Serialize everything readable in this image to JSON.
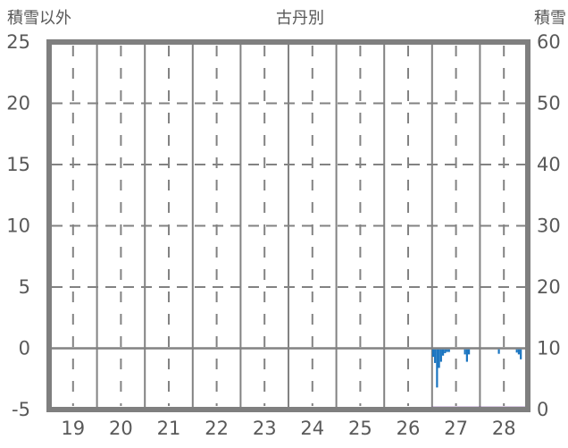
{
  "chart_data": {
    "type": "bar",
    "title": "古丹別",
    "left_axis": {
      "label": "積雪以外",
      "range": [
        -5,
        25
      ],
      "ticks": [
        25,
        20,
        15,
        10,
        5,
        0,
        -5
      ],
      "dashed_gridlines": [
        20,
        15,
        10,
        5
      ],
      "solid_gridline": 0
    },
    "right_axis": {
      "label": "積雪",
      "range": [
        0,
        60
      ],
      "ticks": [
        60,
        50,
        40,
        30,
        20,
        10,
        0
      ]
    },
    "x_axis": {
      "range": [
        18.5,
        28.5
      ],
      "ticks": [
        19,
        20,
        21,
        22,
        23,
        24,
        25,
        26,
        27,
        28
      ],
      "solid_gridlines": [
        19.5,
        20.5,
        21.5,
        22.5,
        23.5,
        24.5,
        25.5,
        26.5,
        27.5
      ]
    },
    "colors": {
      "bars": "#1b75c0",
      "snow_line": "#6d2d91",
      "grid": "#828282",
      "border": "#7f7f7f",
      "text": "#595959"
    },
    "series": [
      {
        "name": "積雪以外",
        "type": "bar",
        "axis": "left",
        "color": "#1b75c0",
        "points": [
          {
            "day": 26,
            "hour": 12,
            "value": -0.7
          },
          {
            "day": 26,
            "hour": 13,
            "value": -1.2
          },
          {
            "day": 26,
            "hour": 14,
            "value": -3.2
          },
          {
            "day": 26,
            "hour": 15,
            "value": -1.6
          },
          {
            "day": 26,
            "hour": 16,
            "value": -1.1
          },
          {
            "day": 26,
            "hour": 17,
            "value": -0.6
          },
          {
            "day": 26,
            "hour": 18,
            "value": -0.4
          },
          {
            "day": 26,
            "hour": 19,
            "value": -0.3
          },
          {
            "day": 26,
            "hour": 20,
            "value": -0.3
          },
          {
            "day": 27,
            "hour": 4,
            "value": -0.5
          },
          {
            "day": 27,
            "hour": 5,
            "value": -1.1
          },
          {
            "day": 27,
            "hour": 6,
            "value": -0.5
          },
          {
            "day": 27,
            "hour": 21,
            "value": -0.45
          },
          {
            "day": 28,
            "hour": 6,
            "value": -0.35
          },
          {
            "day": 28,
            "hour": 7,
            "value": -0.5
          },
          {
            "day": 28,
            "hour": 8,
            "value": -0.9
          }
        ]
      },
      {
        "name": "積雪",
        "type": "line",
        "axis": "right",
        "color": "#6d2d91",
        "points": [
          {
            "day": 26.5,
            "value": 0
          },
          {
            "day": 28.5,
            "value": 0
          }
        ]
      }
    ]
  }
}
